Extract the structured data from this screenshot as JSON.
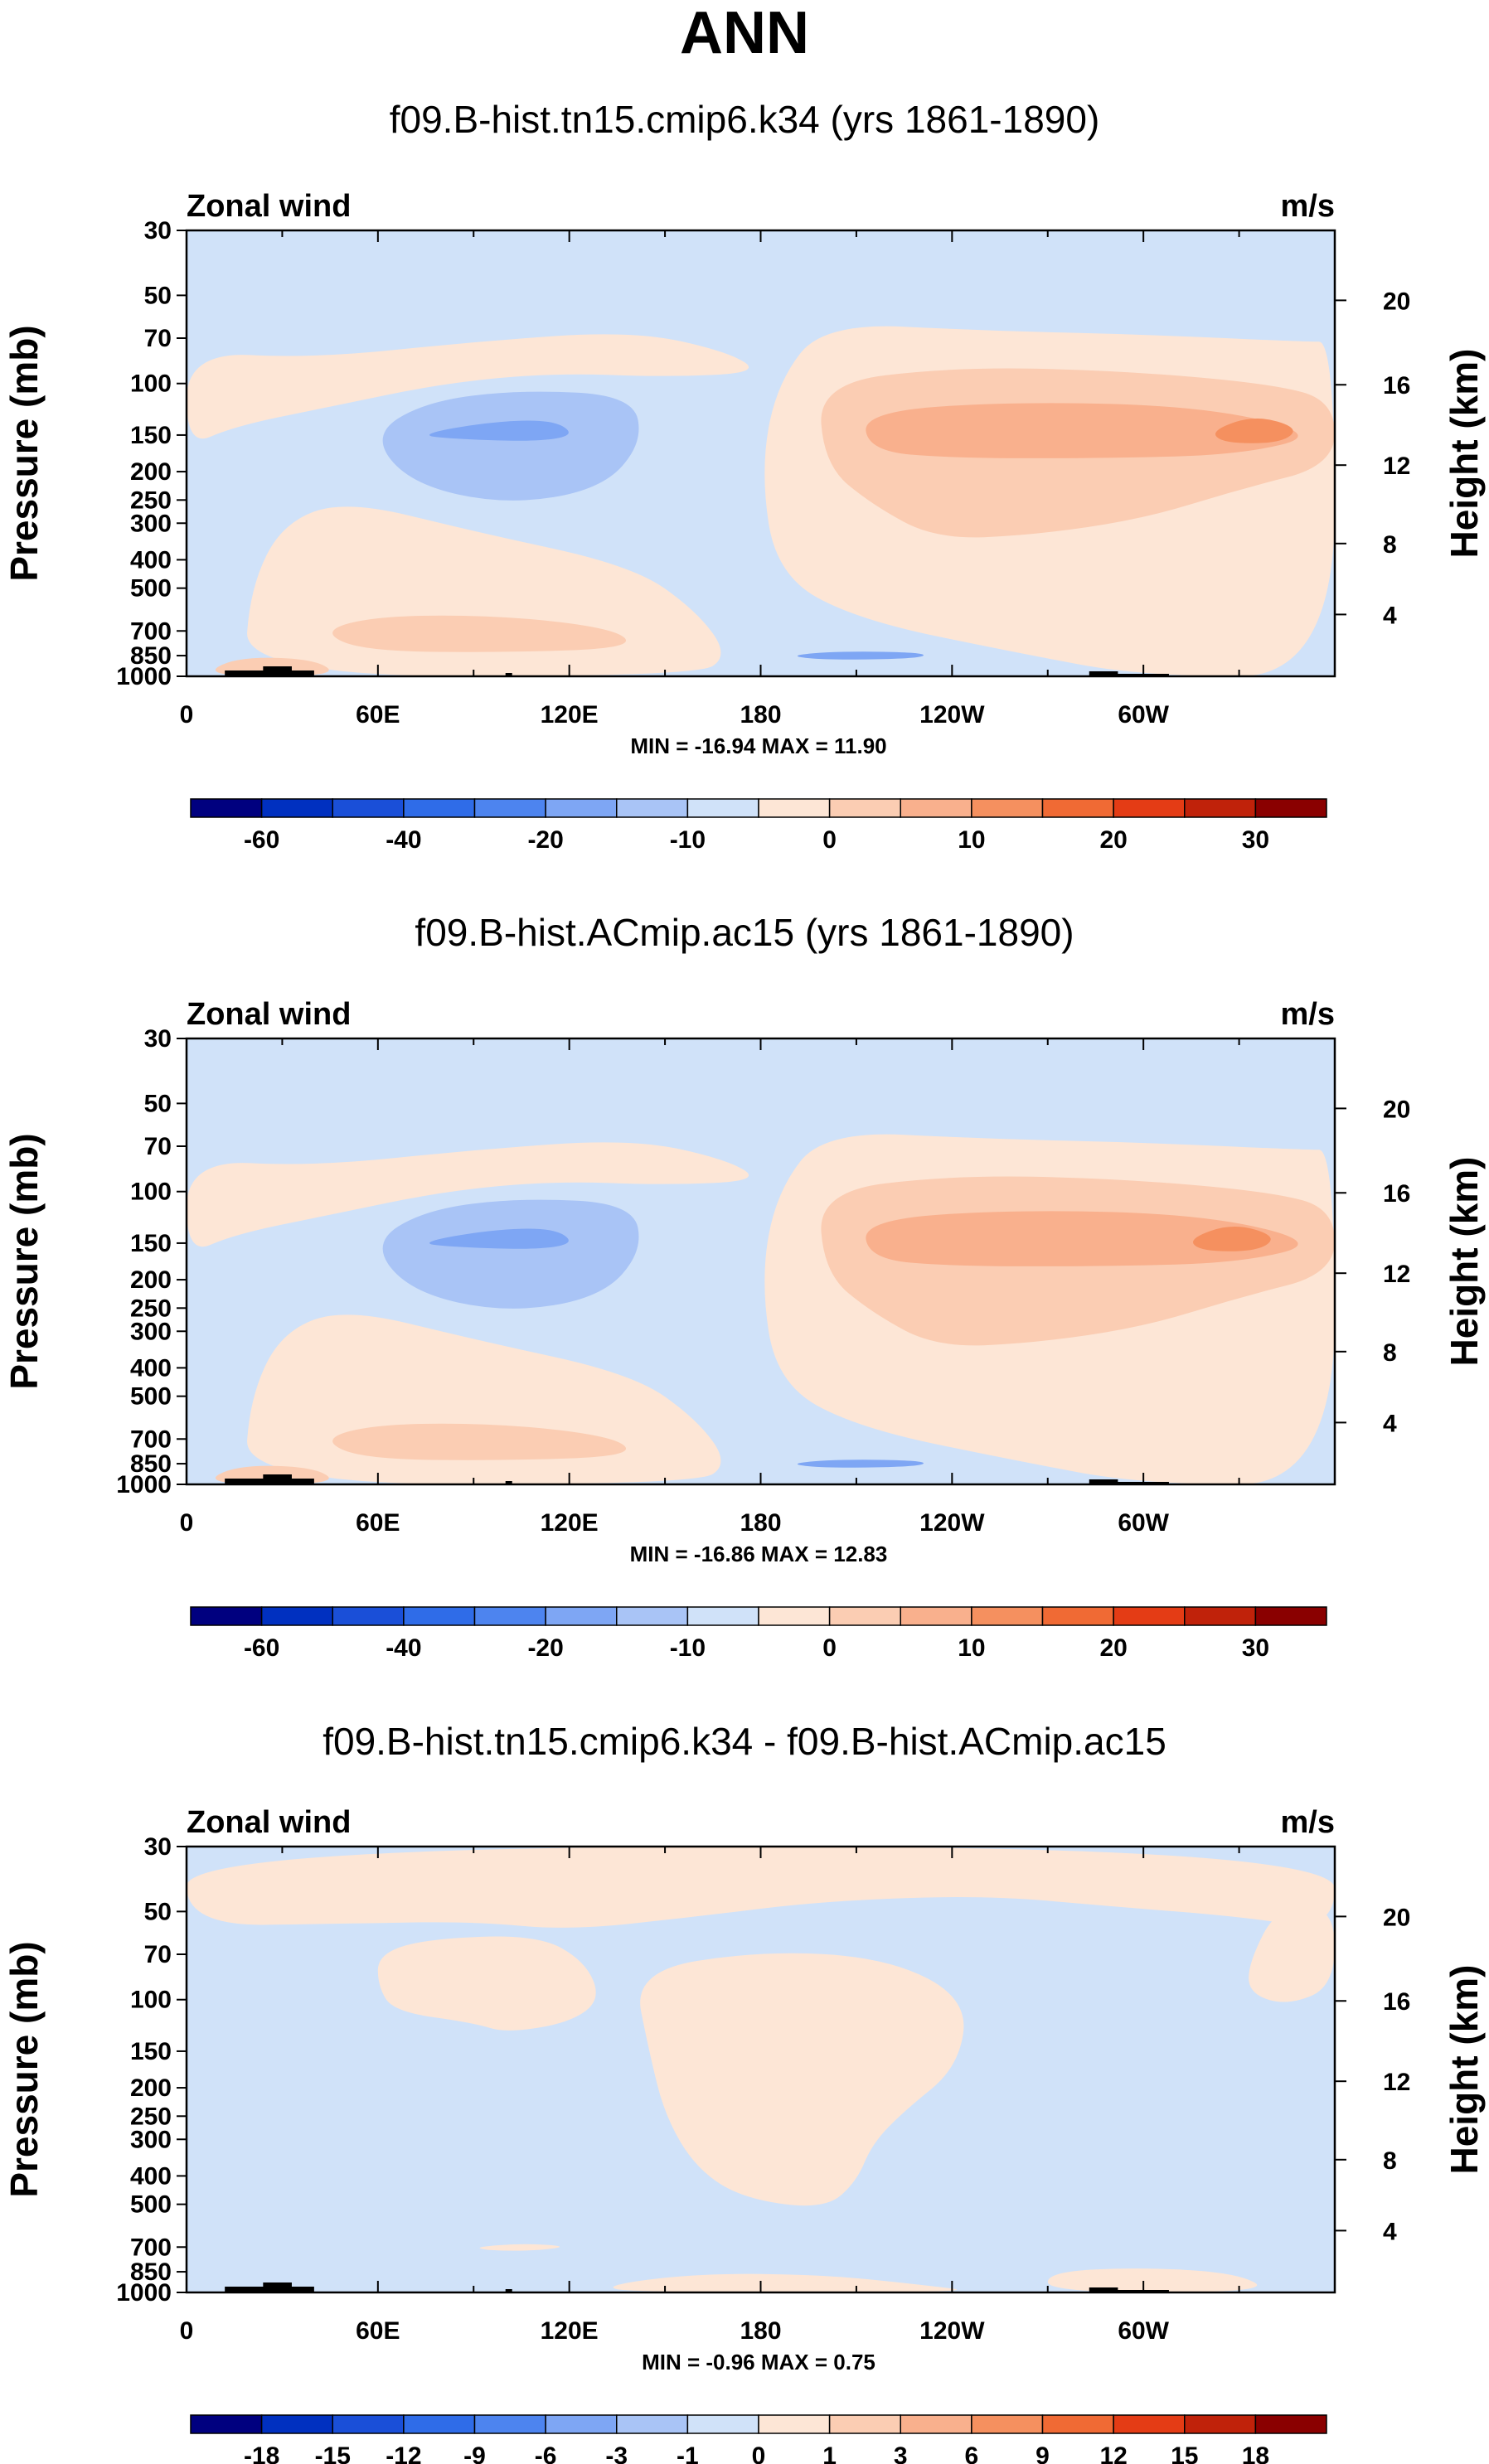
{
  "figure_title": "ANN",
  "colors": {
    "neg_levels": [
      "#00007f",
      "#0030c0",
      "#1a4fd8",
      "#2f6ce8",
      "#4d84ef",
      "#7ea6f4",
      "#a9c4f6",
      "#d0e2f9"
    ],
    "pos_levels": [
      "#fde6d6",
      "#fbcdb3",
      "#f9b08d",
      "#f5905f",
      "#f06a34",
      "#e43c15",
      "#c0220a",
      "#8a0000"
    ]
  },
  "panels": [
    {
      "title": "f09.B-hist.tn15.cmip6.k34 (yrs 1861-1890)",
      "left_label": "Zonal wind",
      "right_label": "m/s",
      "ylabel": "Pressure (mb)",
      "ylabel_right": "Height (km)",
      "stats": "MIN = -16.94  MAX =  11.90",
      "colorbar_labels": [
        "-60",
        "-40",
        "-20",
        "-10",
        "0",
        "10",
        "20",
        "30"
      ]
    },
    {
      "title": "f09.B-hist.ACmip.ac15 (yrs 1861-1890)",
      "left_label": "Zonal wind",
      "right_label": "m/s",
      "ylabel": "Pressure (mb)",
      "ylabel_right": "Height (km)",
      "stats": "MIN = -16.86  MAX =  12.83",
      "colorbar_labels": [
        "-60",
        "-40",
        "-20",
        "-10",
        "0",
        "10",
        "20",
        "30"
      ]
    },
    {
      "title": "f09.B-hist.tn15.cmip6.k34 - f09.B-hist.ACmip.ac15",
      "left_label": "Zonal wind",
      "right_label": "m/s",
      "ylabel": "Pressure (mb)",
      "ylabel_right": "Height (km)",
      "stats": "MIN = -0.96  MAX =  0.75",
      "colorbar_labels": [
        "-18",
        "-15",
        "-12",
        "-9",
        "-6",
        "-3",
        "-1",
        "0",
        "1",
        "3",
        "6",
        "9",
        "12",
        "15",
        "18"
      ]
    }
  ],
  "chart_data": [
    {
      "type": "heatmap",
      "title": "f09.B-hist.tn15.cmip6.k34 (yrs 1861-1890)",
      "variable": "Zonal wind",
      "units": "m/s",
      "x_ticks": [
        "0",
        "60E",
        "120E",
        "180",
        "120W",
        "60W"
      ],
      "y_ticks_pressure": [
        "30",
        "50",
        "70",
        "100",
        "150",
        "200",
        "250",
        "300",
        "400",
        "500",
        "700",
        "850",
        "1000"
      ],
      "y_ticks_height": [
        "20",
        "16",
        "12",
        "8",
        "4"
      ],
      "ylabel": "Pressure (mb)",
      "ylabel_right": "Height (km)",
      "min": -16.94,
      "max": 11.9,
      "contour_levels": [
        -60,
        -40,
        -20,
        -10,
        0,
        10,
        20,
        30
      ],
      "features": [
        {
          "kind": "weak_negative_background",
          "value_range": [
            -10,
            0
          ],
          "p_range": [
            1000,
            30
          ]
        },
        {
          "kind": "positive_band",
          "lon_range": [
            0,
            360
          ],
          "p_range": [
            70,
            100
          ],
          "value_range": [
            0,
            10
          ]
        },
        {
          "kind": "westerly_jet",
          "lon_range": [
            185,
            360
          ],
          "center_lon": 330,
          "center_p": 150,
          "p_range": [
            90,
            450
          ],
          "max_value": 11.9,
          "value_range": [
            10,
            20
          ]
        },
        {
          "kind": "easterly_jet",
          "lon_range": [
            50,
            150
          ],
          "center_lon": 105,
          "center_p": 150,
          "p_range": [
            100,
            300
          ],
          "min_value": -16.94,
          "value_range": [
            -20,
            -10
          ]
        },
        {
          "kind": "low_level_westerlies",
          "lon_range": [
            40,
            140
          ],
          "center_lon": 70,
          "p_range": [
            600,
            900
          ],
          "value_range": [
            0,
            10
          ]
        },
        {
          "kind": "low_level_easterlies",
          "lon_range": [
            190,
            230
          ],
          "center_lon": 210,
          "p_range": [
            800,
            900
          ],
          "value_range": [
            -20,
            -10
          ]
        }
      ]
    },
    {
      "type": "heatmap",
      "title": "f09.B-hist.ACmip.ac15 (yrs 1861-1890)",
      "variable": "Zonal wind",
      "units": "m/s",
      "x_ticks": [
        "0",
        "60E",
        "120E",
        "180",
        "120W",
        "60W"
      ],
      "y_ticks_pressure": [
        "30",
        "50",
        "70",
        "100",
        "150",
        "200",
        "250",
        "300",
        "400",
        "500",
        "700",
        "850",
        "1000"
      ],
      "y_ticks_height": [
        "20",
        "16",
        "12",
        "8",
        "4"
      ],
      "ylabel": "Pressure (mb)",
      "ylabel_right": "Height (km)",
      "min": -16.86,
      "max": 12.83,
      "contour_levels": [
        -60,
        -40,
        -20,
        -10,
        0,
        10,
        20,
        30
      ],
      "features": [
        {
          "kind": "weak_negative_background",
          "value_range": [
            -10,
            0
          ],
          "p_range": [
            1000,
            30
          ]
        },
        {
          "kind": "positive_band",
          "lon_range": [
            0,
            360
          ],
          "p_range": [
            70,
            100
          ],
          "value_range": [
            0,
            10
          ]
        },
        {
          "kind": "westerly_jet",
          "lon_range": [
            185,
            360
          ],
          "center_lon": 325,
          "center_p": 150,
          "p_range": [
            90,
            450
          ],
          "max_value": 12.83,
          "value_range": [
            10,
            20
          ]
        },
        {
          "kind": "easterly_jet",
          "lon_range": [
            50,
            150
          ],
          "center_lon": 105,
          "center_p": 150,
          "p_range": [
            100,
            300
          ],
          "min_value": -16.86,
          "value_range": [
            -20,
            -10
          ]
        },
        {
          "kind": "low_level_westerlies",
          "lon_range": [
            40,
            140
          ],
          "center_lon": 70,
          "p_range": [
            600,
            900
          ],
          "value_range": [
            0,
            10
          ]
        },
        {
          "kind": "low_level_easterlies",
          "lon_range": [
            195,
            230
          ],
          "center_lon": 210,
          "p_range": [
            800,
            900
          ],
          "value_range": [
            -20,
            -10
          ]
        }
      ]
    },
    {
      "type": "heatmap",
      "title": "f09.B-hist.tn15.cmip6.k34 - f09.B-hist.ACmip.ac15",
      "variable": "Zonal wind",
      "units": "m/s",
      "x_ticks": [
        "0",
        "60E",
        "120E",
        "180",
        "120W",
        "60W"
      ],
      "y_ticks_pressure": [
        "30",
        "50",
        "70",
        "100",
        "150",
        "200",
        "250",
        "300",
        "400",
        "500",
        "700",
        "850",
        "1000"
      ],
      "y_ticks_height": [
        "20",
        "16",
        "12",
        "8",
        "4"
      ],
      "ylabel": "Pressure (mb)",
      "ylabel_right": "Height (km)",
      "min": -0.96,
      "max": 0.75,
      "contour_levels": [
        -18,
        -15,
        -12,
        -9,
        -6,
        -3,
        -1,
        0,
        1,
        3,
        6,
        9,
        12,
        15,
        18
      ],
      "features": [
        {
          "kind": "negative_background",
          "value_range": [
            -1,
            0
          ],
          "p_range": [
            1000,
            30
          ]
        },
        {
          "kind": "positive_upper_layer",
          "lon_range": [
            0,
            360
          ],
          "p_range": [
            30,
            60
          ],
          "value_range": [
            0,
            1
          ]
        },
        {
          "kind": "positive_central_region",
          "lon_range": [
            140,
            250
          ],
          "p_range": [
            70,
            500
          ],
          "value_range": [
            0,
            1
          ]
        },
        {
          "kind": "positive_east_pacific",
          "lon_range": [
            335,
            360
          ],
          "p_range": [
            50,
            100
          ],
          "value_range": [
            0,
            1
          ]
        },
        {
          "kind": "positive_low_level_patches",
          "lon_range": [
            120,
            330
          ],
          "p_range": [
            700,
            1000
          ],
          "value_range": [
            0,
            1
          ]
        }
      ]
    }
  ]
}
